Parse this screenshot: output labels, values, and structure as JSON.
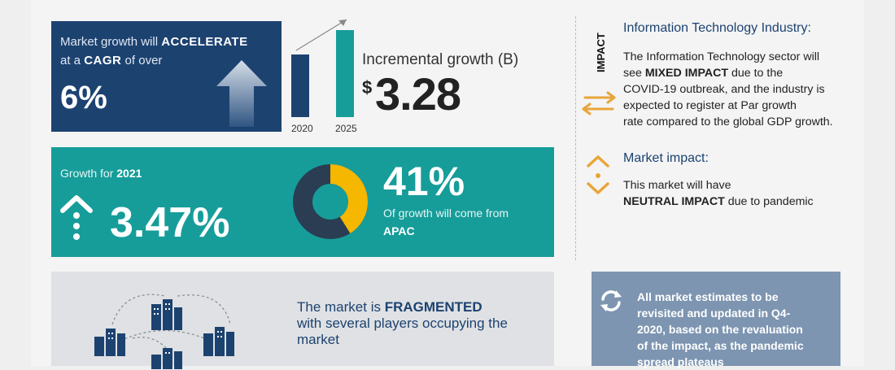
{
  "growth": {
    "line1_prefix": "Market growth will",
    "line1_emphasis": "ACCELERATE",
    "line2_prefix": "at a",
    "line2_emphasis": "CAGR",
    "line2_suffix": "of over",
    "value": "6%"
  },
  "incremental": {
    "years": [
      "2020",
      "2025"
    ],
    "label": "Incremental growth (B)",
    "currency": "$",
    "value": "3.28"
  },
  "growth_year": {
    "label": "Growth for",
    "year": "2021",
    "value": "3.47%"
  },
  "region_share": {
    "value": "41%",
    "text": "Of growth will come from",
    "region": "APAC",
    "fraction": 0.41
  },
  "impact": {
    "vertical_label": "IMPACT",
    "title": "Information Technology Industry:",
    "body_1": "The Information Technology sector will",
    "body_2_prefix": "see",
    "body_2_emphasis": "MIXED IMPACT",
    "body_2_suffix": "due to the",
    "body_3": "COVID-19 outbreak, and the industry is",
    "body_4": "expected to register at Par growth",
    "body_5": "rate compared to the global GDP growth."
  },
  "market_impact": {
    "title": "Market impact:",
    "line1": "This market will have",
    "line2_emphasis": "NEUTRAL IMPACT",
    "line2_suffix": "due to pandemic"
  },
  "structure": {
    "prefix": "The market is",
    "emphasis": "FRAGMENTED",
    "line2": "with several players occupying the",
    "line3": "market"
  },
  "note": {
    "line1": "All market estimates to be",
    "line2": "revisited and updated in Q4-",
    "line3": "2020, based on the revaluation",
    "line4": "of the impact, as the pandemic",
    "line5": "spread plateaus"
  },
  "colors": {
    "navy": "#1c4270",
    "teal": "#169d9a",
    "gold": "#f5b700",
    "orange": "#e9a53a",
    "slate": "#7d95b1"
  },
  "icons": [
    "up-arrow-icon",
    "dotted-arrow-icon",
    "donut-chart-icon",
    "exchange-arrows-icon",
    "chevron-up-down-icon",
    "city-buildings-icon",
    "refresh-icon"
  ]
}
